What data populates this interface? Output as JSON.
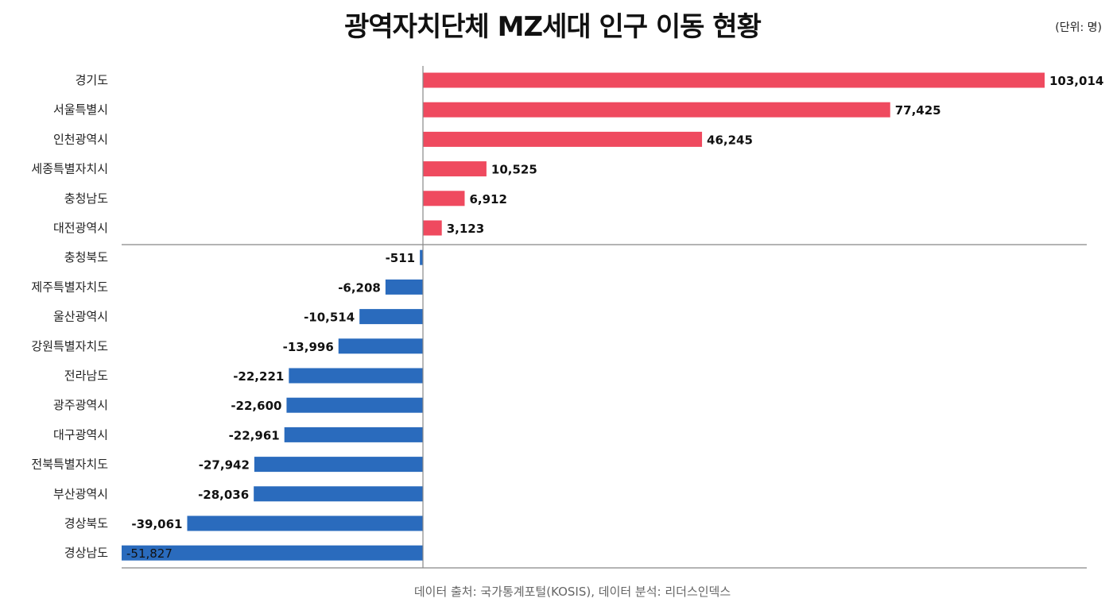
{
  "chart_data": {
    "type": "bar",
    "orientation": "horizontal",
    "title": "광역자치단체 MZ세대 인구 이동 현황",
    "unit_label": "(단위: 명)",
    "source": "데이터 출처: 국가통계포털(KOSIS), 데이터 분석: 리더스인덱스",
    "categories": [
      "경기도",
      "서울특별시",
      "인천광역시",
      "세종특별자치시",
      "충청남도",
      "대전광역시",
      "충청북도",
      "제주특별자치도",
      "울산광역시",
      "강원특별자치도",
      "전라남도",
      "광주광역시",
      "대구광역시",
      "전북특별자치도",
      "부산광역시",
      "경상북도",
      "경상남도"
    ],
    "values": [
      103014,
      77425,
      46245,
      10525,
      6912,
      3123,
      -511,
      -6208,
      -10514,
      -13996,
      -22221,
      -22600,
      -22961,
      -27942,
      -28036,
      -39061,
      -51827
    ],
    "labels": [
      "103,014",
      "77,425",
      "46,245",
      "10,525",
      "6,912",
      "3,123",
      "-511",
      "-6,208",
      "-10,514",
      "-13,996",
      "-22,221",
      "-22,600",
      "-22,961",
      "-27,942",
      "-28,036",
      "-39,061",
      "-51,827"
    ],
    "xlim": [
      -49900,
      105000
    ],
    "colors": {
      "positive": "#ef4a5f",
      "negative": "#2a6bbd"
    },
    "grid": false
  }
}
